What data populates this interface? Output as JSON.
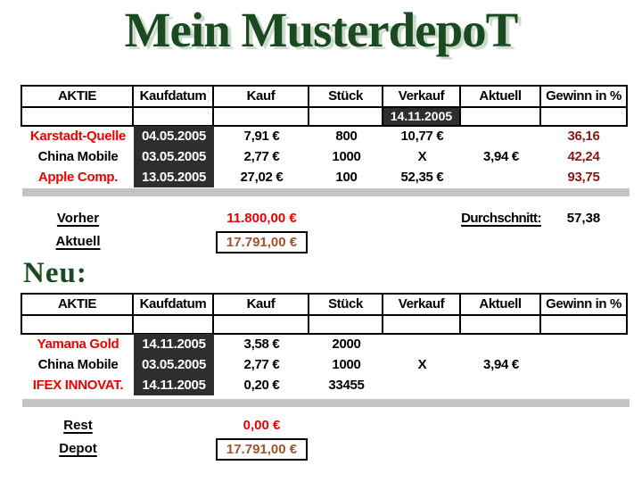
{
  "title": "Mein MusterdepoT",
  "neu_heading": "Neu:",
  "columns": [
    "AKTIE",
    "Kaufdatum",
    "Kauf",
    "Stück",
    "Verkauf",
    "Aktuell",
    "Gewinn in %"
  ],
  "table1": {
    "verkauf_date": "14.11.2005",
    "rows": [
      {
        "aktie": "Karstadt-Quelle",
        "aktie_color": "#e60000",
        "kaufdatum": "04.05.2005",
        "kauf": "7,91 €",
        "stueck": "800",
        "verkauf": "10,77 €",
        "aktuell": "",
        "gewinn": "36,16"
      },
      {
        "aktie": "China Mobile",
        "aktie_color": "#000000",
        "kaufdatum": "03.05.2005",
        "kauf": "2,77 €",
        "stueck": "1000",
        "verkauf": "X",
        "aktuell": "3,94 €",
        "gewinn": "42,24"
      },
      {
        "aktie": "Apple Comp.",
        "aktie_color": "#e60000",
        "kaufdatum": "13.05.2005",
        "kauf": "27,02 €",
        "stueck": "100",
        "verkauf": "52,35 €",
        "aktuell": "",
        "gewinn": "93,75"
      }
    ]
  },
  "summary1": {
    "vorher_label": "Vorher",
    "vorher_value": "11.800,00 €",
    "aktuell_label": "Aktuell",
    "aktuell_value": "17.791,00 €",
    "durchschnitt_label": "Durchschnitt:",
    "durchschnitt_value": "57,38"
  },
  "table2": {
    "rows": [
      {
        "aktie": "Yamana Gold",
        "aktie_color": "#e60000",
        "kaufdatum": "14.11.2005",
        "kauf": "3,58 €",
        "stueck": "2000",
        "verkauf": "",
        "aktuell": "",
        "gewinn": ""
      },
      {
        "aktie": "China Mobile",
        "aktie_color": "#000000",
        "kaufdatum": "03.05.2005",
        "kauf": "2,77 €",
        "stueck": "1000",
        "verkauf": "X",
        "aktuell": "3,94 €",
        "gewinn": ""
      },
      {
        "aktie": "IFEX INNOVAT.",
        "aktie_color": "#e60000",
        "kaufdatum": "14.11.2005",
        "kauf": "0,20 €",
        "stueck": "33455",
        "verkauf": "",
        "aktuell": "",
        "gewinn": ""
      }
    ]
  },
  "summary2": {
    "rest_label": "Rest",
    "rest_value": "0,00 €",
    "depot_label": "Depot",
    "depot_value": "17.791,00 €"
  },
  "colors": {
    "title_green": "#1b4a21",
    "stock_red": "#e60000",
    "gewinn_maroon": "#8b1616",
    "boxed_value_brown": "#a0522d",
    "dark_cell_bg": "#2e2e2e",
    "divider_gray": "#c4c4c4"
  }
}
